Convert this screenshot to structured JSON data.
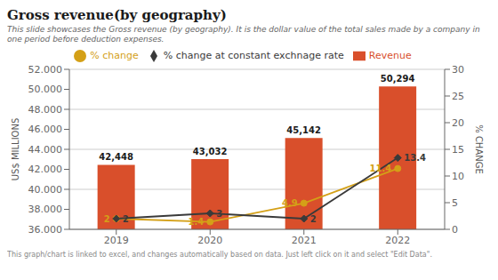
{
  "chart_data": {
    "type": "bar",
    "title": "Gross revenue(by geography)",
    "subtitle": "This slide showcases the Gross revenue (by geography). It is the dollar value of the total sales made by a company in one period before deduction expenses.",
    "annotations": [
      "This graph/chart is linked to excel, and changes automatically based on data. Just left click on it and select \"Edit Data\"."
    ],
    "ylabel": "US$ MILLIONS",
    "y2label": "% CHANGE",
    "categories": [
      "2019",
      "2020",
      "2021",
      "2022"
    ],
    "series": [
      {
        "name": "Revenue",
        "type": "bar",
        "color": "#D94F2B",
        "values": [
          42448,
          43032,
          45142,
          50294
        ],
        "value_labels": [
          "42,448",
          "43,032",
          "45,142",
          "50,294"
        ],
        "data_labels": true
      },
      {
        "name": "% change",
        "type": "line",
        "axis": "y2",
        "color": "#D4A017",
        "marker": "circle",
        "line_style": "solid",
        "values": [
          2,
          1.4,
          4.9,
          11.4
        ],
        "data_labels": true
      },
      {
        "name": "% change at constant exchnage rate",
        "type": "line",
        "axis": "y2",
        "color": "#3a3a3a",
        "marker": "diamond",
        "line_style": "solid",
        "values": [
          2,
          3,
          2,
          13.4
        ],
        "data_labels": true
      }
    ],
    "ylim": [
      36000,
      52000
    ],
    "yticks": [
      {
        "value": 36000,
        "label": "36.000"
      },
      {
        "value": 38000,
        "label": "38.000"
      },
      {
        "value": 40000,
        "label": "40.000"
      },
      {
        "value": 42000,
        "label": "42.000"
      },
      {
        "value": 44000,
        "label": "44.000"
      },
      {
        "value": 46000,
        "label": "46.000"
      },
      {
        "value": 48000,
        "label": "48.000"
      },
      {
        "value": 50000,
        "label": "50.000"
      },
      {
        "value": 52000,
        "label": "52.000"
      }
    ],
    "y2lim": [
      0,
      30
    ],
    "y2ticks": [
      0,
      5,
      10,
      15,
      20,
      25,
      30
    ],
    "grid": true,
    "legend": "top"
  }
}
